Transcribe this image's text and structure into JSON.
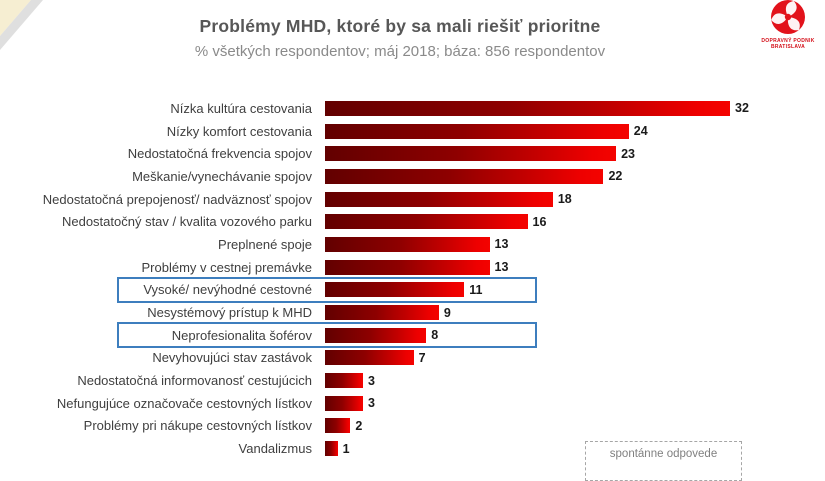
{
  "header": {
    "title": "Problémy MHD, ktoré by sa mali riešiť prioritne",
    "subtitle": "% všetkých respondentov; máj 2018; báza: 856 respondentov"
  },
  "logo": {
    "line1": "DOPRAVNÝ PODNIK",
    "line2": "BRATISLAVA",
    "color": "#d40d17"
  },
  "chart_data": {
    "type": "bar",
    "orientation": "horizontal",
    "title": "Problémy MHD, ktoré by sa mali riešiť prioritne",
    "subtitle": "% všetkých respondentov; máj 2018; báza: 856 respondentov",
    "unit": "% of respondents",
    "xlim": [
      0,
      32
    ],
    "grid": false,
    "categories": [
      "Nízka kultúra cestovania",
      "Nízky komfort cestovania",
      "Nedostatočná frekvencia  spojov",
      "Meškanie/vynechávanie spojov",
      "Nedostatočná prepojenosť/ nadväznosť spojov",
      "Nedostatočný stav / kvalita vozového parku",
      "Preplnené spoje",
      "Problémy v cestnej premávke",
      "Vysoké/ nevýhodné cestovné",
      "Nesystémový prístup k MHD",
      "Neprofesionalita šoférov",
      "Nevyhovujúci stav zastávok",
      "Nedostatočná informovanosť cestujúcich",
      "Nefungujúce označovače cestovných lístkov",
      "Problémy pri nákupe cestovných lístkov",
      "Vandalizmus"
    ],
    "values": [
      32,
      24,
      23,
      22,
      18,
      16,
      13,
      13,
      11,
      9,
      8,
      7,
      3,
      3,
      2,
      1
    ],
    "highlighted_indices": [
      8,
      10
    ],
    "highlighted_labels": [
      "Vysoké/ nevýhodné cestovné",
      "Neprofesionalita šoférov"
    ],
    "bar_gradient": [
      "#620000",
      "#f40300"
    ],
    "highlight_border_color": "#3d7ebe",
    "legend_position": "none"
  },
  "footnote": {
    "label": "spontánne odpovede"
  }
}
